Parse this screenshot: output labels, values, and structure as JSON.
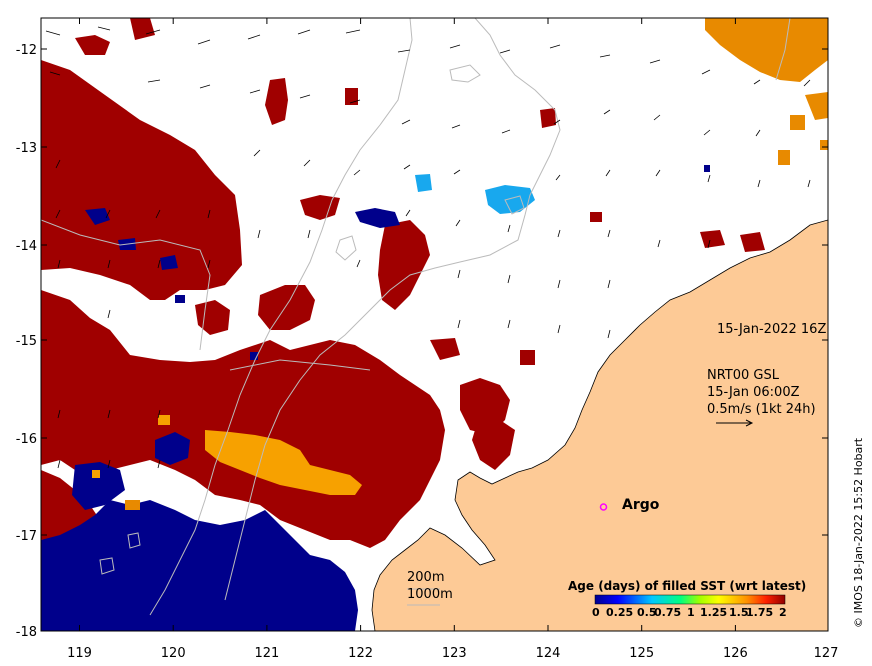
{
  "map": {
    "x_ticks": [
      "119",
      "120",
      "121",
      "122",
      "123",
      "124",
      "125",
      "126",
      "127"
    ],
    "y_ticks": [
      "-12",
      "-13",
      "-14",
      "-15",
      "-16",
      "-17",
      "-18"
    ],
    "x_range": [
      118.6,
      127.0
    ],
    "y_range": [
      -18.0,
      -11.75
    ],
    "land_color": "#fdca96",
    "colors": {
      "dark_red": "#a00000",
      "dark_blue": "#00008b",
      "orange": "#f7a100",
      "dark_orange": "#e88a00",
      "light_blue": "#18a8ee"
    }
  },
  "annotations": {
    "timestamp": "15-Jan-2022 16Z",
    "current_title": "NRT00 GSL",
    "current_time": "15-Jan 06:00Z",
    "current_scale": "0.5m/s (1kt 24h)",
    "isobath_200": "200m",
    "isobath_1000": "1000m",
    "argo": "Argo",
    "copyright": "© IMOS 18-Jan-2022 15:52 Hobart"
  },
  "colorbar": {
    "title": "Age (days) of filled SST (wrt latest)",
    "tick_labels": [
      "0",
      "0.25",
      "0.5",
      "0.75",
      "1",
      "1.25",
      "1.5",
      "1.75",
      "2"
    ],
    "range": [
      0,
      2
    ]
  }
}
